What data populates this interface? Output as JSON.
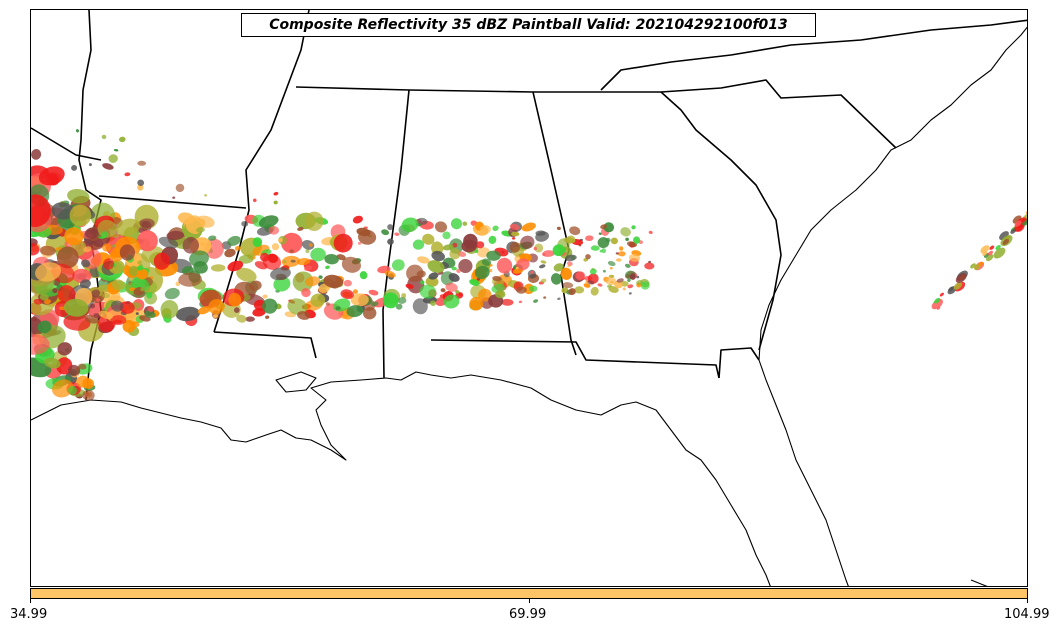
{
  "title": "Composite Reflectivity 35 dBZ Paintball Valid: 202104292100f013",
  "colorbar": {
    "color": "#ffc466",
    "ticks": [
      "34.99",
      "69.99",
      "104.99"
    ]
  },
  "map": {
    "land_color": "#ffffff",
    "border_color": "#000000",
    "member_colors": [
      "#f01a1a",
      "#ff8c00",
      "#ffb84d",
      "#8b3a3a",
      "#a0522d",
      "#3c8c3c",
      "#39d439",
      "#b0b030",
      "#8fae2f",
      "#555555",
      "#ff5a5a"
    ]
  }
}
